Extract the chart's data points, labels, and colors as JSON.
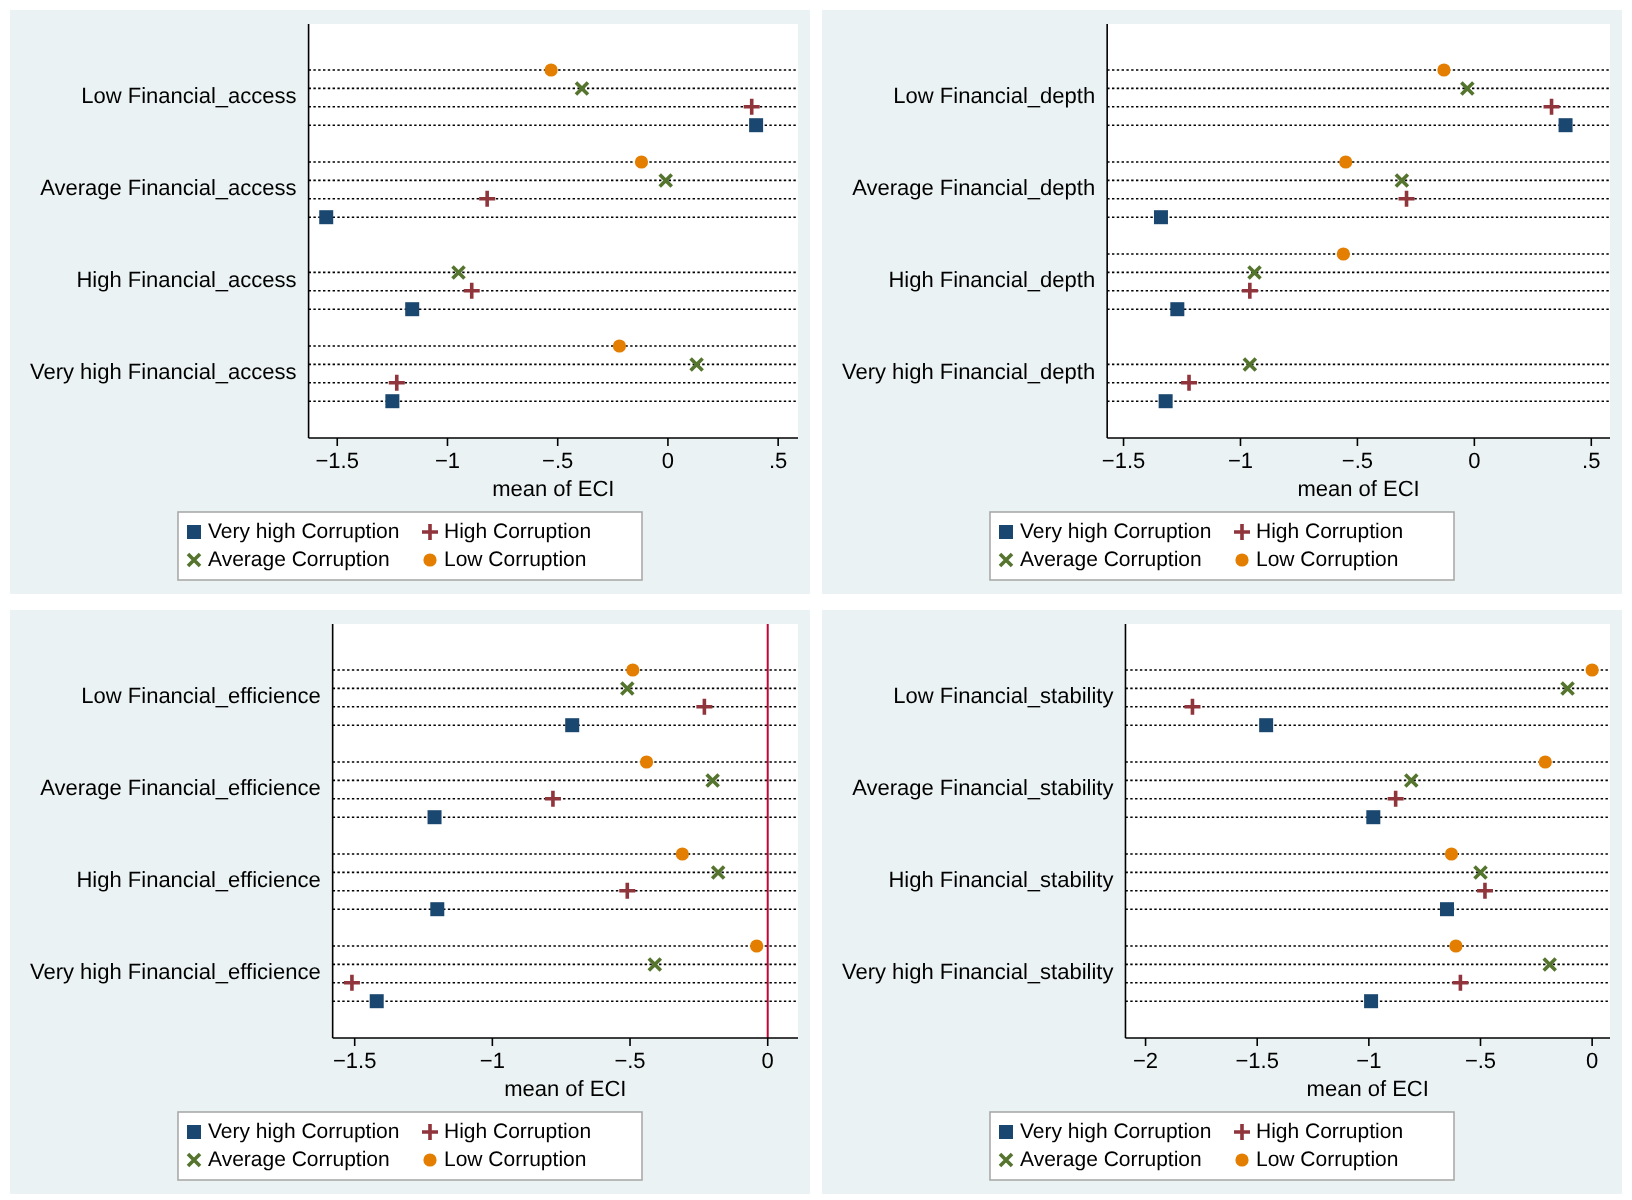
{
  "chart_data": [
    {
      "type": "scatter",
      "orientation": "horizontal",
      "categories": [
        "Low Financial_access",
        "Average Financial_access",
        "High Financial_access",
        "Very high Financial_access"
      ],
      "xlabel": "mean of ECI",
      "xlim": [
        -1.63,
        0.59
      ],
      "xticks": [
        {
          "value": -1.5,
          "label": "−1.5"
        },
        {
          "value": -1,
          "label": "−1"
        },
        {
          "value": -0.5,
          "label": "−.5"
        },
        {
          "value": 0,
          "label": "0"
        },
        {
          "value": 0.5,
          "label": ".5"
        }
      ],
      "grid": "y",
      "legend": "bottom",
      "series": [
        {
          "name": "Low Corruption",
          "color": "#e37e00",
          "marker": "circle",
          "values": [
            -0.53,
            -0.12,
            null,
            -0.22
          ]
        },
        {
          "name": "Average Corruption",
          "color": "#55752f",
          "marker": "cross",
          "values": [
            -0.39,
            -0.01,
            -0.95,
            0.13
          ]
        },
        {
          "name": "High Corruption",
          "color": "#90353b",
          "marker": "plus",
          "values": [
            0.38,
            -0.82,
            -0.89,
            -1.23
          ]
        },
        {
          "name": "Very high Corruption",
          "color": "#1a476f",
          "marker": "square",
          "values": [
            0.4,
            -1.55,
            -1.16,
            -1.25
          ]
        }
      ]
    },
    {
      "type": "scatter",
      "orientation": "horizontal",
      "categories": [
        "Low Financial_depth",
        "Average Financial_depth",
        "High Financial_depth",
        "Very high Financial_depth"
      ],
      "xlabel": "mean of ECI",
      "xlim": [
        -1.57,
        0.58
      ],
      "xticks": [
        {
          "value": -1.5,
          "label": "−1.5"
        },
        {
          "value": -1,
          "label": "−1"
        },
        {
          "value": -0.5,
          "label": "−.5"
        },
        {
          "value": 0,
          "label": "0"
        },
        {
          "value": 0.5,
          "label": ".5"
        }
      ],
      "grid": "y",
      "legend": "bottom",
      "series": [
        {
          "name": "Low Corruption",
          "color": "#e37e00",
          "marker": "circle",
          "values": [
            -0.13,
            -0.55,
            -0.56,
            null
          ]
        },
        {
          "name": "Average Corruption",
          "color": "#55752f",
          "marker": "cross",
          "values": [
            -0.03,
            -0.31,
            -0.94,
            -0.96
          ]
        },
        {
          "name": "High Corruption",
          "color": "#90353b",
          "marker": "plus",
          "values": [
            0.33,
            -0.29,
            -0.96,
            -1.22
          ]
        },
        {
          "name": "Very high Corruption",
          "color": "#1a476f",
          "marker": "square",
          "values": [
            0.39,
            -1.34,
            -1.27,
            -1.32
          ]
        }
      ]
    },
    {
      "type": "scatter",
      "orientation": "horizontal",
      "categories": [
        "Low Financial_efficience",
        "Average Financial_efficience",
        "High Financial_efficience",
        "Very high Financial_efficience"
      ],
      "xlabel": "mean of ECI",
      "xlim": [
        -1.58,
        0.11
      ],
      "xticks": [
        {
          "value": -1.5,
          "label": "−1.5"
        },
        {
          "value": -1,
          "label": "−1"
        },
        {
          "value": -0.5,
          "label": "−.5"
        },
        {
          "value": 0,
          "label": "0"
        }
      ],
      "grid": "y",
      "legend": "bottom",
      "ref_lines": [
        {
          "axis": "x",
          "value": 0,
          "color": "#c10534"
        }
      ],
      "series": [
        {
          "name": "Low Corruption",
          "color": "#e37e00",
          "marker": "circle",
          "values": [
            -0.49,
            -0.44,
            -0.31,
            -0.04
          ]
        },
        {
          "name": "Average Corruption",
          "color": "#55752f",
          "marker": "cross",
          "values": [
            -0.51,
            -0.2,
            -0.18,
            -0.41
          ]
        },
        {
          "name": "High Corruption",
          "color": "#90353b",
          "marker": "plus",
          "values": [
            -0.23,
            -0.78,
            -0.51,
            -1.51
          ]
        },
        {
          "name": "Very high Corruption",
          "color": "#1a476f",
          "marker": "square",
          "values": [
            -0.71,
            -1.21,
            -1.2,
            -1.42
          ]
        }
      ]
    },
    {
      "type": "scatter",
      "orientation": "horizontal",
      "categories": [
        "Low Financial_stability",
        "Average Financial_stability",
        "High Financial_stability",
        "Very high Financial_stability"
      ],
      "xlabel": "mean of ECI",
      "xlim": [
        -2.09,
        0.08
      ],
      "xticks": [
        {
          "value": -2,
          "label": "−2"
        },
        {
          "value": -1.5,
          "label": "−1.5"
        },
        {
          "value": -1,
          "label": "−1"
        },
        {
          "value": -0.5,
          "label": "−.5"
        },
        {
          "value": 0,
          "label": "0"
        }
      ],
      "grid": "y",
      "legend": "bottom",
      "series": [
        {
          "name": "Low Corruption",
          "color": "#e37e00",
          "marker": "circle",
          "values": [
            0,
            -0.21,
            -0.63,
            -0.61
          ]
        },
        {
          "name": "Average Corruption",
          "color": "#55752f",
          "marker": "cross",
          "values": [
            -0.11,
            -0.81,
            -0.5,
            -0.19
          ]
        },
        {
          "name": "High Corruption",
          "color": "#90353b",
          "marker": "plus",
          "values": [
            -1.79,
            -0.88,
            -0.48,
            -0.59
          ]
        },
        {
          "name": "Very high Corruption",
          "color": "#1a476f",
          "marker": "square",
          "values": [
            -1.46,
            -0.98,
            -0.65,
            -0.99
          ]
        }
      ]
    }
  ]
}
